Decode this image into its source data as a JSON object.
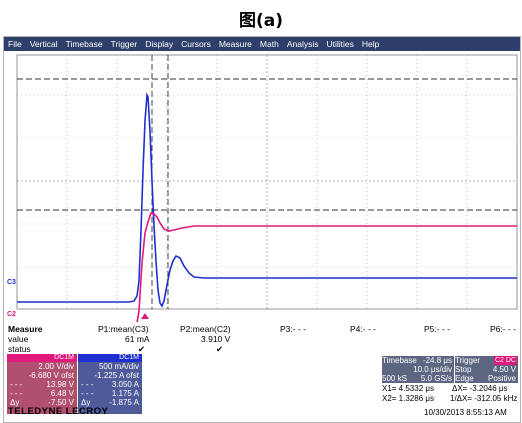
{
  "figure_title": "图(a)",
  "menu": [
    "File",
    "Vertical",
    "Timebase",
    "Trigger",
    "Display",
    "Cursors",
    "Measure",
    "Math",
    "Analysis",
    "Utilities",
    "Help"
  ],
  "measure": {
    "label": "Measure",
    "p1_name": "P1:mean(C3)",
    "p2_name": "P2:mean(C2)",
    "p3_name": "P3:- - -",
    "p4_name": "P4:- - -",
    "p5_name": "P5:- - -",
    "p6_name": "P6:- - -",
    "value_label": "value",
    "p1_value": "61 mA",
    "p2_value": "3.910 V",
    "status_label": "status",
    "p1_status": "✔",
    "p2_status": "✔"
  },
  "channels": {
    "c2": {
      "label": "C2",
      "tag": "DC1M",
      "color": "#e0197d",
      "scale": "2.00 V/div",
      "offset": "-6.680 V ofst",
      "r1": "13.98 V",
      "r2": "6.48 V",
      "dy_label": "Δy",
      "dy": "-7.50 V"
    },
    "c3": {
      "label": "C3",
      "tag": "DC1M",
      "color": "#1f2fd1",
      "scale": "500 mA/div",
      "offset": "-1.225 A ofst",
      "r1": "3.050 A",
      "r2": "1.175 A",
      "dy_label": "Δy",
      "dy": "-1.875 A"
    }
  },
  "timebase": {
    "label": "Timebase",
    "delay": "-24.8 μs",
    "div": "10.0 μs/div",
    "samples": "500 kS",
    "rate": "5.0 GS/s"
  },
  "trigger": {
    "label": "Trigger",
    "tag": "C2 DC",
    "mode": "Stop",
    "level": "4.50 V",
    "type": "Edge",
    "slope": "Positive"
  },
  "cursors": {
    "x1": "X1= 4.5332 μs",
    "x2": "X2= 1.3286 μs",
    "dx": "ΔX= -3.2046 μs",
    "inv_dx": "1/ΔX= -312.05 kHz"
  },
  "brand": "TELEDYNE LECROY",
  "timestamp": "10/30/2013 8:55:13 AM"
}
